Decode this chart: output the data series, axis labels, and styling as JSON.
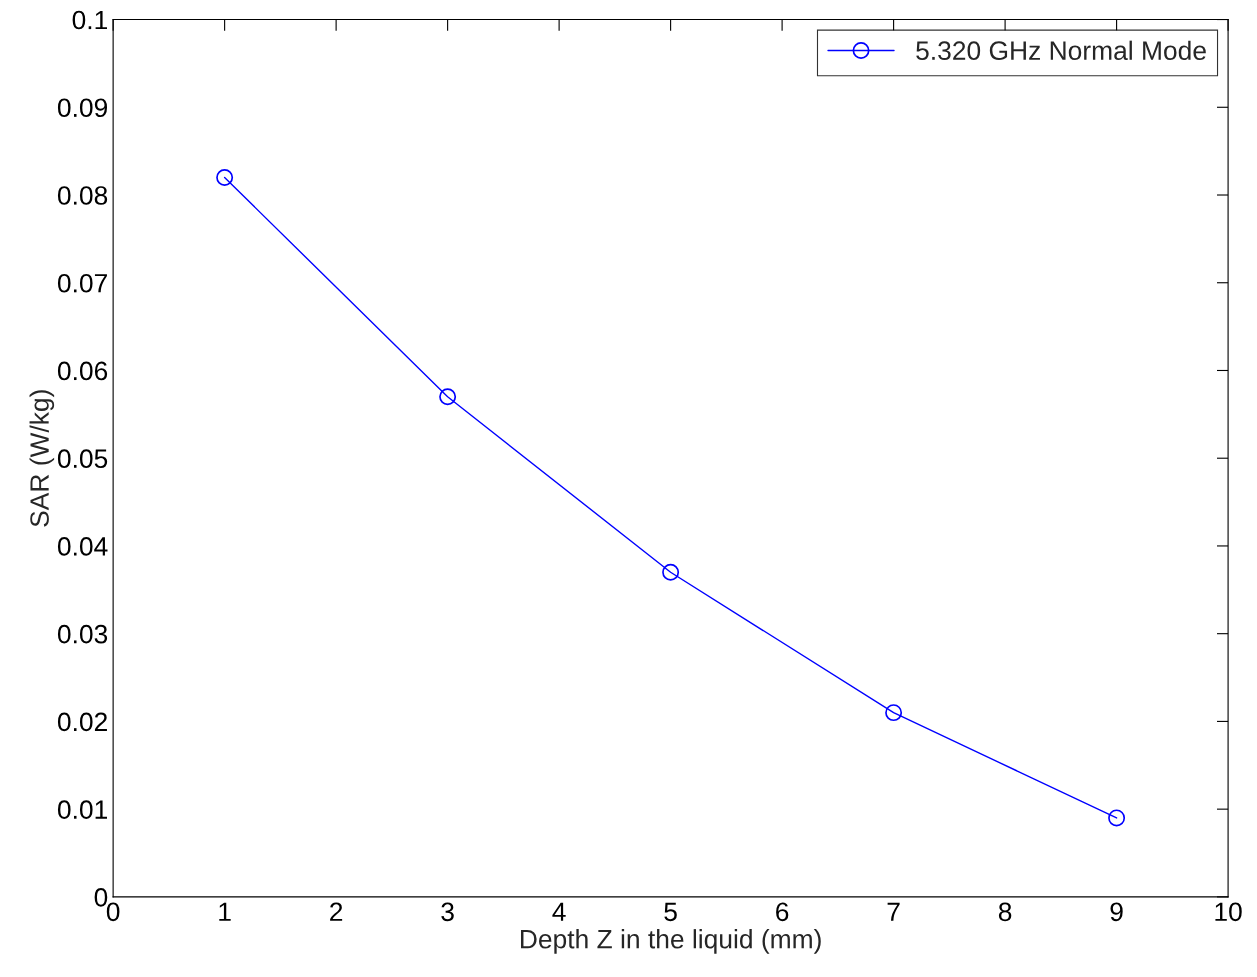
{
  "chart_data": {
    "type": "line",
    "xlabel": "Depth Z in the liquid (mm)",
    "ylabel": "SAR (W/kg)",
    "x": [
      1,
      3,
      5,
      7,
      9
    ],
    "series": [
      {
        "name": "5.320 GHz Normal Mode",
        "color": "#0000ff",
        "values": [
          0.082,
          0.057,
          0.037,
          0.021,
          0.009
        ]
      }
    ],
    "xlim": [
      0,
      10
    ],
    "xticks": [
      0,
      1,
      2,
      3,
      4,
      5,
      6,
      7,
      8,
      9,
      10
    ],
    "ylim": [
      0,
      0.1
    ],
    "yticks": [
      0,
      0.01,
      0.02,
      0.03,
      0.04,
      0.05,
      0.06,
      0.07,
      0.08,
      0.09,
      0.1
    ],
    "marker": "circle",
    "line_style": "solid",
    "legend": "top right",
    "grid": false
  }
}
